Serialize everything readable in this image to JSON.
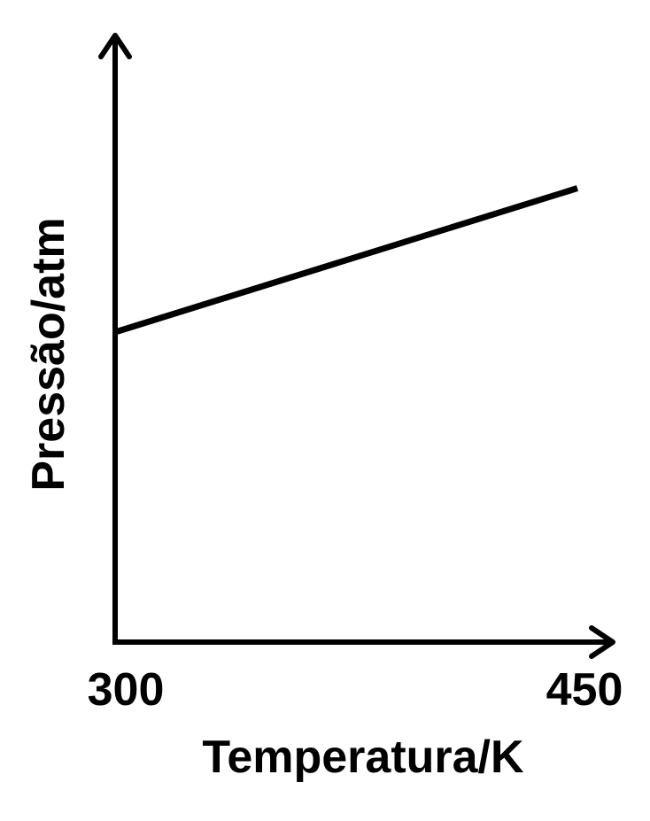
{
  "chart_data": {
    "type": "line",
    "title": "",
    "xlabel": "Temperatura/K",
    "ylabel": "Pressão/atm",
    "x_ticks": [
      "300",
      "450"
    ],
    "xlim": [
      300,
      450
    ],
    "ylim": [
      0,
      1.0
    ],
    "y_ticks_shown": false,
    "grid": false,
    "legend": "none",
    "series": [
      {
        "x": [
          300,
          450
        ],
        "y": [
          0.56,
          0.82
        ]
      }
    ]
  }
}
